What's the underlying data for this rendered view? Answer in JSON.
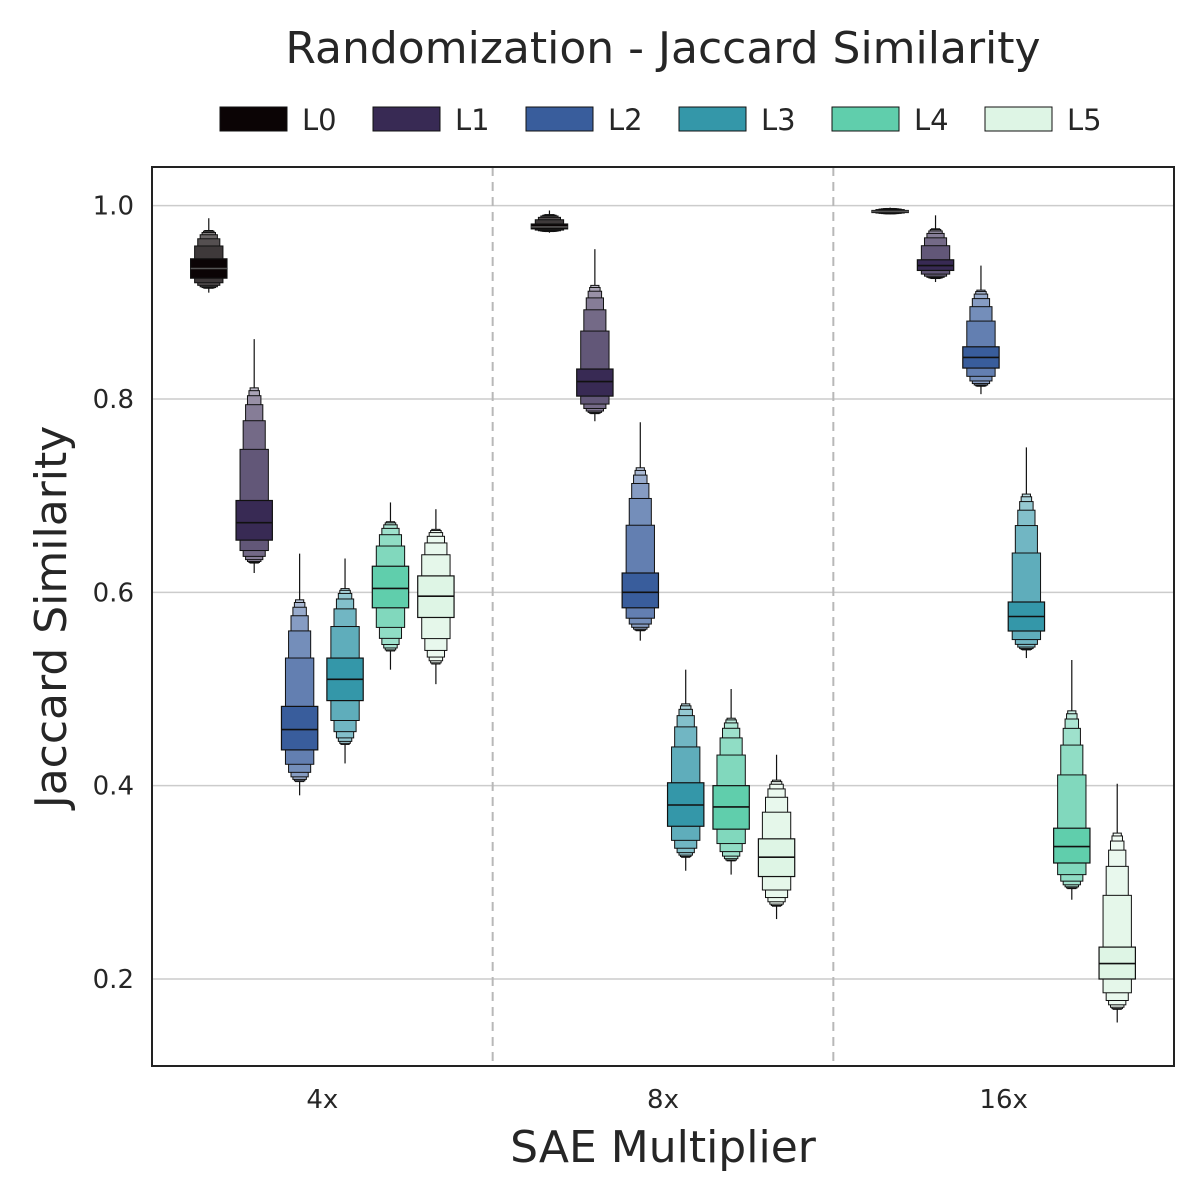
{
  "chart_data": {
    "type": "boxen",
    "title": "Randomization - Jaccard Similarity",
    "xlabel": "SAE Multiplier",
    "ylabel": "Jaccard Similarity",
    "ylim": [
      0.11,
      1.04
    ],
    "yticks": [
      0.2,
      0.4,
      0.6,
      0.8,
      1.0
    ],
    "ytick_labels": [
      "0.2",
      "0.4",
      "0.6",
      "0.8",
      "1.0"
    ],
    "categories": [
      "4x",
      "8x",
      "16x"
    ],
    "grid": true,
    "legend_position": "top",
    "series": [
      {
        "name": "L0",
        "color": "#0b0405",
        "median": [
          0.935,
          0.978,
          0.994
        ],
        "q1": [
          0.925,
          0.976,
          0.993
        ],
        "q3": [
          0.945,
          0.981,
          0.995
        ],
        "min": [
          0.91,
          0.972,
          0.991
        ],
        "max": [
          0.987,
          0.995,
          0.998
        ]
      },
      {
        "name": "L1",
        "color": "#382a54",
        "median": [
          0.672,
          0.818,
          0.938
        ],
        "q1": [
          0.654,
          0.803,
          0.933
        ],
        "q3": [
          0.695,
          0.831,
          0.944
        ],
        "min": [
          0.62,
          0.777,
          0.921
        ],
        "max": [
          0.862,
          0.955,
          0.99
        ]
      },
      {
        "name": "L2",
        "color": "#395d9c",
        "median": [
          0.458,
          0.6,
          0.843
        ],
        "q1": [
          0.437,
          0.584,
          0.832
        ],
        "q3": [
          0.482,
          0.62,
          0.854
        ],
        "min": [
          0.39,
          0.55,
          0.805
        ],
        "max": [
          0.64,
          0.776,
          0.938
        ]
      },
      {
        "name": "L3",
        "color": "#3497a9",
        "median": [
          0.51,
          0.38,
          0.575
        ],
        "q1": [
          0.488,
          0.358,
          0.56
        ],
        "q3": [
          0.532,
          0.403,
          0.59
        ],
        "min": [
          0.423,
          0.312,
          0.532
        ],
        "max": [
          0.635,
          0.52,
          0.75
        ]
      },
      {
        "name": "L4",
        "color": "#60ceac",
        "median": [
          0.604,
          0.378,
          0.337
        ],
        "q1": [
          0.584,
          0.355,
          0.32
        ],
        "q3": [
          0.627,
          0.4,
          0.356
        ],
        "min": [
          0.52,
          0.308,
          0.282
        ],
        "max": [
          0.693,
          0.5,
          0.53
        ]
      },
      {
        "name": "L5",
        "color": "#def5e5",
        "median": [
          0.596,
          0.326,
          0.216
        ],
        "q1": [
          0.574,
          0.306,
          0.2
        ],
        "q3": [
          0.617,
          0.345,
          0.233
        ],
        "min": [
          0.505,
          0.262,
          0.155
        ],
        "max": [
          0.686,
          0.432,
          0.402
        ]
      }
    ]
  }
}
